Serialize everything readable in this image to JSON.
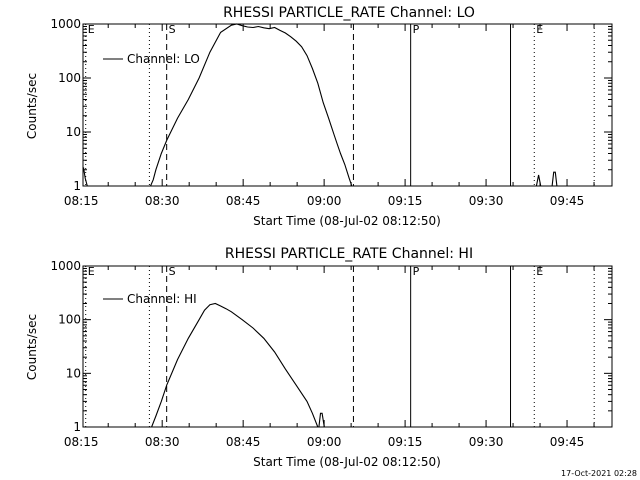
{
  "figure": {
    "timestamp": "17-Oct-2021 02:28",
    "colors": {
      "background": "#ffffff",
      "foreground": "#000000"
    }
  },
  "chart_data": [
    {
      "type": "line",
      "title": "RHESSI PARTICLE_RATE Channel: LO",
      "xlabel": "Start Time (08-Jul-02 08:12:50)",
      "ylabel": "Counts/sec",
      "yscale": "log",
      "xlim": [
        2.5,
        100.5
      ],
      "ylim": [
        1,
        1000
      ],
      "xticks": [
        {
          "value": 2.17,
          "label": "08:15"
        },
        {
          "value": 17.17,
          "label": "08:30"
        },
        {
          "value": 32.17,
          "label": "08:45"
        },
        {
          "value": 47.17,
          "label": "09:00"
        },
        {
          "value": 62.17,
          "label": "09:15"
        },
        {
          "value": 77.17,
          "label": "09:30"
        },
        {
          "value": 92.17,
          "label": "09:45"
        }
      ],
      "yticks": [
        {
          "value": 1,
          "label": "1"
        },
        {
          "value": 10,
          "label": "10"
        },
        {
          "value": 100,
          "label": "100"
        },
        {
          "value": 1000,
          "label": "1000"
        }
      ],
      "legend": {
        "position": "top-left",
        "entries": [
          "Channel: LO"
        ]
      },
      "markers": [
        {
          "x": 3.0,
          "style": "dotted",
          "label": "E"
        },
        {
          "x": 14.8,
          "style": "dotted",
          "label": ""
        },
        {
          "x": 18.0,
          "style": "dashed",
          "label": "S"
        },
        {
          "x": 52.6,
          "style": "dashed",
          "label": ""
        },
        {
          "x": 63.2,
          "style": "solid",
          "label": "P"
        },
        {
          "x": 81.7,
          "style": "solid",
          "label": ""
        },
        {
          "x": 86.1,
          "style": "dotted",
          "label": "E"
        },
        {
          "x": 97.2,
          "style": "dotted",
          "label": ""
        }
      ],
      "series": [
        {
          "name": "Channel: LO",
          "segments": [
            {
              "x": [
                2.6,
                2.9,
                3.3
              ],
              "y": [
                2.2,
                1.4,
                1
              ]
            },
            {
              "x": [
                15.0,
                15.5,
                16.0,
                17.0,
                18.0,
                20.0,
                22.0,
                24.0,
                26.0,
                28.0,
                30.0,
                31.0,
                32.0,
                33.0,
                34.0,
                35.0,
                36.0,
                37.0,
                38.0,
                39.0,
                40.0,
                41.0,
                42.0,
                43.0,
                44.0,
                45.0,
                46.0,
                47.0,
                48.0,
                49.0,
                49.6,
                50.2,
                51.0,
                51.8,
                52.3
              ],
              "y": [
                1,
                1.3,
                2.0,
                4.0,
                7.0,
                18,
                40,
                100,
                300,
                700,
                950,
                1000,
                930,
                880,
                860,
                900,
                850,
                820,
                860,
                760,
                680,
                580,
                480,
                380,
                260,
                150,
                80,
                35,
                18,
                9,
                6,
                4,
                2.5,
                1.4,
                1
              ]
            },
            {
              "x": [
                86.5,
                86.9,
                87.3
              ],
              "y": [
                1,
                1.6,
                1
              ]
            },
            {
              "x": [
                89.4,
                89.7,
                90.0,
                90.3
              ],
              "y": [
                1,
                1.8,
                1.8,
                1
              ]
            }
          ]
        }
      ]
    },
    {
      "type": "line",
      "title": "RHESSI PARTICLE_RATE Channel: HI",
      "xlabel": "Start Time (08-Jul-02 08:12:50)",
      "ylabel": "Counts/sec",
      "yscale": "log",
      "xlim": [
        2.5,
        100.5
      ],
      "ylim": [
        1,
        1000
      ],
      "xticks": [
        {
          "value": 2.17,
          "label": "08:15"
        },
        {
          "value": 17.17,
          "label": "08:30"
        },
        {
          "value": 32.17,
          "label": "08:45"
        },
        {
          "value": 47.17,
          "label": "09:00"
        },
        {
          "value": 62.17,
          "label": "09:15"
        },
        {
          "value": 77.17,
          "label": "09:30"
        },
        {
          "value": 92.17,
          "label": "09:45"
        }
      ],
      "yticks": [
        {
          "value": 1,
          "label": "1"
        },
        {
          "value": 10,
          "label": "10"
        },
        {
          "value": 100,
          "label": "100"
        },
        {
          "value": 1000,
          "label": "1000"
        }
      ],
      "legend": {
        "position": "top-left",
        "entries": [
          "Channel: HI"
        ]
      },
      "markers": [
        {
          "x": 3.0,
          "style": "dotted",
          "label": "E"
        },
        {
          "x": 14.8,
          "style": "dotted",
          "label": ""
        },
        {
          "x": 18.0,
          "style": "dashed",
          "label": "S"
        },
        {
          "x": 52.6,
          "style": "dashed",
          "label": ""
        },
        {
          "x": 63.2,
          "style": "solid",
          "label": "P"
        },
        {
          "x": 81.7,
          "style": "solid",
          "label": ""
        },
        {
          "x": 86.1,
          "style": "dotted",
          "label": "E"
        },
        {
          "x": 97.2,
          "style": "dotted",
          "label": ""
        }
      ],
      "series": [
        {
          "name": "Channel: HI",
          "segments": [
            {
              "x": [
                15.2,
                16.0,
                17.0,
                18.0,
                20.0,
                22.0,
                24.0,
                25.0,
                26.0,
                27.0,
                28.0,
                29.0,
                30.0,
                32.0,
                34.0,
                36.0,
                38.0,
                40.0,
                42.0,
                44.0,
                45.0,
                46.0
              ],
              "y": [
                1,
                1.6,
                3.0,
                6.0,
                18,
                45,
                100,
                150,
                190,
                200,
                180,
                160,
                140,
                100,
                70,
                45,
                25,
                12,
                6,
                3,
                1.8,
                1
              ]
            },
            {
              "x": [
                46.2,
                46.5,
                46.8,
                47.2
              ],
              "y": [
                1,
                1.8,
                1.8,
                1
              ]
            }
          ]
        }
      ]
    }
  ]
}
